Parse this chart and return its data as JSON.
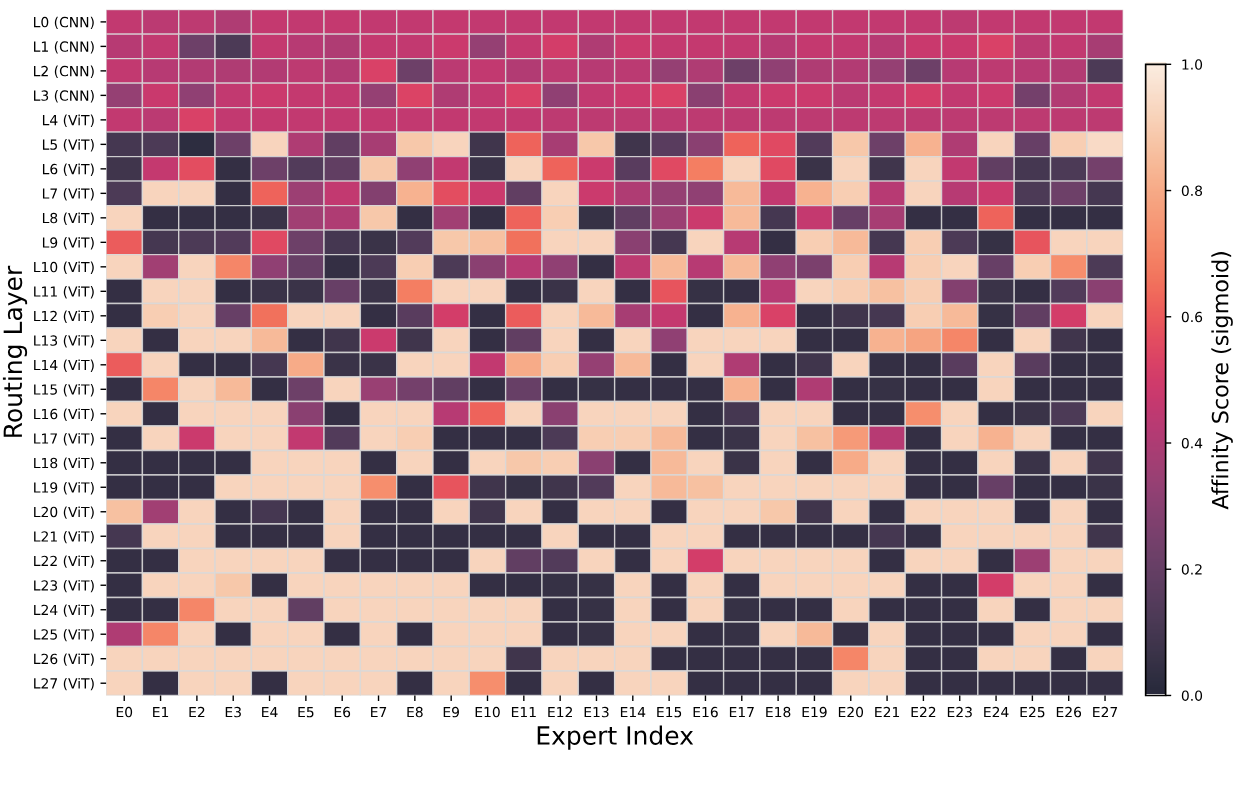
{
  "chart_data": {
    "type": "heatmap",
    "xlabel": "Expert Index",
    "ylabel": "Routing Layer",
    "clabel": "Affinity Score (sigmoid)",
    "categories": [
      "E0",
      "E1",
      "E2",
      "E3",
      "E4",
      "E5",
      "E6",
      "E7",
      "E8",
      "E9",
      "E10",
      "E11",
      "E12",
      "E13",
      "E14",
      "E15",
      "E16",
      "E17",
      "E18",
      "E19",
      "E20",
      "E21",
      "E22",
      "E23",
      "E24",
      "E25",
      "E26",
      "E27"
    ],
    "y_categories": [
      "L0 (CNN)",
      "L1 (CNN)",
      "L2 (CNN)",
      "L3 (CNN)",
      "L4 (ViT)",
      "L5 (ViT)",
      "L6 (ViT)",
      "L7 (ViT)",
      "L8 (ViT)",
      "L9 (ViT)",
      "L10 (ViT)",
      "L11 (ViT)",
      "L12 (ViT)",
      "L13 (ViT)",
      "L14 (ViT)",
      "L15 (ViT)",
      "L16 (ViT)",
      "L17 (ViT)",
      "L18 (ViT)",
      "L19 (ViT)",
      "L20 (ViT)",
      "L21 (ViT)",
      "L22 (ViT)",
      "L23 (ViT)",
      "L24 (ViT)",
      "L25 (ViT)",
      "L26 (ViT)",
      "L27 (ViT)"
    ],
    "cells": [
      [
        0.45,
        0.43,
        0.44,
        0.4,
        0.46,
        0.45,
        0.46,
        0.45,
        0.45,
        0.46,
        0.45,
        0.45,
        0.45,
        0.45,
        0.45,
        0.45,
        0.45,
        0.45,
        0.45,
        0.45,
        0.45,
        0.45,
        0.45,
        0.44,
        0.45,
        0.45,
        0.45,
        0.45
      ],
      [
        0.42,
        0.45,
        0.22,
        0.12,
        0.46,
        0.42,
        0.4,
        0.46,
        0.45,
        0.48,
        0.33,
        0.46,
        0.5,
        0.4,
        0.48,
        0.46,
        0.46,
        0.45,
        0.42,
        0.46,
        0.45,
        0.42,
        0.47,
        0.47,
        0.52,
        0.43,
        0.45,
        0.38
      ],
      [
        0.45,
        0.42,
        0.41,
        0.4,
        0.41,
        0.44,
        0.41,
        0.52,
        0.22,
        0.43,
        0.45,
        0.41,
        0.44,
        0.42,
        0.43,
        0.33,
        0.4,
        0.22,
        0.32,
        0.4,
        0.41,
        0.33,
        0.22,
        0.42,
        0.44,
        0.42,
        0.41,
        0.12
      ],
      [
        0.33,
        0.47,
        0.32,
        0.45,
        0.48,
        0.46,
        0.45,
        0.33,
        0.53,
        0.4,
        0.45,
        0.52,
        0.32,
        0.45,
        0.48,
        0.52,
        0.3,
        0.45,
        0.48,
        0.48,
        0.43,
        0.46,
        0.5,
        0.45,
        0.48,
        0.24,
        0.41,
        0.45
      ],
      [
        0.45,
        0.43,
        0.52,
        0.45,
        0.46,
        0.45,
        0.45,
        0.45,
        0.45,
        0.45,
        0.45,
        0.45,
        0.44,
        0.44,
        0.44,
        0.44,
        0.44,
        0.44,
        0.44,
        0.44,
        0.44,
        0.44,
        0.44,
        0.44,
        0.44,
        0.44,
        0.44,
        0.44
      ],
      [
        0.1,
        0.12,
        0.02,
        0.22,
        0.92,
        0.4,
        0.18,
        0.38,
        0.88,
        0.92,
        0.08,
        0.62,
        0.38,
        0.88,
        0.08,
        0.16,
        0.3,
        0.62,
        0.55,
        0.14,
        0.88,
        0.22,
        0.82,
        0.4,
        0.92,
        0.2,
        0.9,
        0.94
      ],
      [
        0.08,
        0.46,
        0.56,
        0.04,
        0.22,
        0.14,
        0.18,
        0.88,
        0.32,
        0.45,
        0.06,
        0.92,
        0.62,
        0.48,
        0.16,
        0.55,
        0.68,
        0.92,
        0.55,
        0.06,
        0.92,
        0.08,
        0.92,
        0.45,
        0.18,
        0.1,
        0.12,
        0.24
      ],
      [
        0.12,
        0.92,
        0.92,
        0.04,
        0.62,
        0.35,
        0.45,
        0.28,
        0.82,
        0.56,
        0.48,
        0.18,
        0.92,
        0.48,
        0.4,
        0.33,
        0.32,
        0.84,
        0.45,
        0.82,
        0.9,
        0.42,
        0.92,
        0.42,
        0.48,
        0.12,
        0.22,
        0.1
      ],
      [
        0.92,
        0.04,
        0.04,
        0.04,
        0.06,
        0.36,
        0.4,
        0.88,
        0.04,
        0.36,
        0.04,
        0.62,
        0.9,
        0.05,
        0.18,
        0.35,
        0.48,
        0.84,
        0.1,
        0.46,
        0.2,
        0.38,
        0.04,
        0.04,
        0.62,
        0.04,
        0.04,
        0.04
      ],
      [
        0.6,
        0.1,
        0.12,
        0.14,
        0.55,
        0.22,
        0.1,
        0.06,
        0.14,
        0.88,
        0.86,
        0.65,
        0.92,
        0.92,
        0.3,
        0.1,
        0.92,
        0.42,
        0.04,
        0.9,
        0.84,
        0.1,
        0.9,
        0.12,
        0.05,
        0.58,
        0.92,
        0.92
      ],
      [
        0.92,
        0.36,
        0.92,
        0.7,
        0.32,
        0.2,
        0.04,
        0.12,
        0.9,
        0.12,
        0.3,
        0.42,
        0.32,
        0.04,
        0.44,
        0.84,
        0.42,
        0.84,
        0.32,
        0.26,
        0.9,
        0.42,
        0.9,
        0.92,
        0.2,
        0.9,
        0.72,
        0.12
      ],
      [
        0.04,
        0.92,
        0.92,
        0.04,
        0.06,
        0.06,
        0.2,
        0.06,
        0.68,
        0.92,
        0.92,
        0.04,
        0.06,
        0.92,
        0.04,
        0.58,
        0.05,
        0.04,
        0.42,
        0.92,
        0.9,
        0.86,
        0.9,
        0.28,
        0.06,
        0.04,
        0.14,
        0.3
      ],
      [
        0.04,
        0.9,
        0.92,
        0.2,
        0.65,
        0.92,
        0.92,
        0.04,
        0.16,
        0.5,
        0.04,
        0.6,
        0.92,
        0.84,
        0.38,
        0.46,
        0.04,
        0.82,
        0.52,
        0.04,
        0.08,
        0.1,
        0.9,
        0.84,
        0.05,
        0.18,
        0.5,
        0.92
      ],
      [
        0.92,
        0.04,
        0.92,
        0.92,
        0.84,
        0.04,
        0.08,
        0.48,
        0.08,
        0.92,
        0.04,
        0.18,
        0.92,
        0.04,
        0.92,
        0.32,
        0.92,
        0.92,
        0.92,
        0.04,
        0.04,
        0.82,
        0.78,
        0.7,
        0.04,
        0.92,
        0.08,
        0.04
      ],
      [
        0.6,
        0.92,
        0.04,
        0.04,
        0.1,
        0.8,
        0.06,
        0.06,
        0.92,
        0.92,
        0.45,
        0.8,
        0.9,
        0.33,
        0.84,
        0.04,
        0.92,
        0.4,
        0.04,
        0.08,
        0.92,
        0.04,
        0.04,
        0.16,
        0.92,
        0.16,
        0.04,
        0.04
      ],
      [
        0.04,
        0.7,
        0.92,
        0.84,
        0.04,
        0.22,
        0.92,
        0.34,
        0.24,
        0.18,
        0.04,
        0.2,
        0.04,
        0.05,
        0.04,
        0.04,
        0.04,
        0.82,
        0.04,
        0.4,
        0.04,
        0.05,
        0.04,
        0.04,
        0.92,
        0.04,
        0.04,
        0.04
      ],
      [
        0.92,
        0.04,
        0.92,
        0.92,
        0.92,
        0.3,
        0.04,
        0.92,
        0.92,
        0.42,
        0.62,
        0.92,
        0.3,
        0.92,
        0.92,
        0.92,
        0.04,
        0.1,
        0.92,
        0.92,
        0.04,
        0.04,
        0.72,
        0.92,
        0.04,
        0.06,
        0.12,
        0.92
      ],
      [
        0.04,
        0.92,
        0.48,
        0.92,
        0.92,
        0.45,
        0.14,
        0.92,
        0.9,
        0.04,
        0.04,
        0.04,
        0.12,
        0.9,
        0.9,
        0.84,
        0.04,
        0.06,
        0.92,
        0.86,
        0.75,
        0.42,
        0.04,
        0.92,
        0.82,
        0.92,
        0.04,
        0.04
      ],
      [
        0.04,
        0.04,
        0.04,
        0.04,
        0.92,
        0.92,
        0.92,
        0.04,
        0.92,
        0.04,
        0.92,
        0.88,
        0.9,
        0.3,
        0.04,
        0.84,
        0.92,
        0.06,
        0.92,
        0.04,
        0.8,
        0.92,
        0.04,
        0.04,
        0.92,
        0.06,
        0.92,
        0.08
      ],
      [
        0.04,
        0.04,
        0.04,
        0.92,
        0.92,
        0.92,
        0.92,
        0.72,
        0.04,
        0.58,
        0.08,
        0.05,
        0.08,
        0.14,
        0.92,
        0.84,
        0.86,
        0.92,
        0.92,
        0.92,
        0.92,
        0.92,
        0.04,
        0.04,
        0.2,
        0.04,
        0.04,
        0.06
      ],
      [
        0.86,
        0.36,
        0.92,
        0.04,
        0.1,
        0.04,
        0.92,
        0.04,
        0.04,
        0.92,
        0.08,
        0.92,
        0.04,
        0.92,
        0.92,
        0.04,
        0.92,
        0.92,
        0.88,
        0.08,
        0.92,
        0.04,
        0.92,
        0.92,
        0.92,
        0.04,
        0.92,
        0.04
      ],
      [
        0.1,
        0.92,
        0.92,
        0.04,
        0.04,
        0.04,
        0.92,
        0.04,
        0.04,
        0.04,
        0.04,
        0.04,
        0.92,
        0.04,
        0.04,
        0.92,
        0.92,
        0.04,
        0.04,
        0.04,
        0.04,
        0.1,
        0.04,
        0.92,
        0.92,
        0.92,
        0.92,
        0.08
      ],
      [
        0.04,
        0.04,
        0.92,
        0.92,
        0.92,
        0.92,
        0.04,
        0.04,
        0.04,
        0.04,
        0.92,
        0.18,
        0.14,
        0.92,
        0.04,
        0.92,
        0.5,
        0.92,
        0.92,
        0.92,
        0.92,
        0.04,
        0.92,
        0.92,
        0.04,
        0.35,
        0.92,
        0.92
      ],
      [
        0.04,
        0.92,
        0.92,
        0.88,
        0.04,
        0.92,
        0.92,
        0.92,
        0.92,
        0.92,
        0.04,
        0.04,
        0.05,
        0.05,
        0.92,
        0.04,
        0.92,
        0.04,
        0.92,
        0.92,
        0.92,
        0.92,
        0.04,
        0.04,
        0.5,
        0.92,
        0.92,
        0.04
      ],
      [
        0.04,
        0.04,
        0.7,
        0.92,
        0.92,
        0.18,
        0.92,
        0.92,
        0.92,
        0.92,
        0.92,
        0.92,
        0.04,
        0.05,
        0.92,
        0.04,
        0.92,
        0.05,
        0.04,
        0.04,
        0.92,
        0.04,
        0.04,
        0.04,
        0.92,
        0.04,
        0.92,
        0.92
      ],
      [
        0.4,
        0.7,
        0.92,
        0.04,
        0.92,
        0.92,
        0.04,
        0.92,
        0.04,
        0.92,
        0.92,
        0.92,
        0.04,
        0.05,
        0.92,
        0.92,
        0.04,
        0.05,
        0.92,
        0.84,
        0.04,
        0.92,
        0.04,
        0.04,
        0.04,
        0.92,
        0.92,
        0.04
      ],
      [
        0.92,
        0.92,
        0.92,
        0.92,
        0.92,
        0.92,
        0.92,
        0.92,
        0.92,
        0.92,
        0.92,
        0.08,
        0.92,
        0.92,
        0.92,
        0.04,
        0.04,
        0.04,
        0.04,
        0.04,
        0.7,
        0.92,
        0.04,
        0.04,
        0.92,
        0.92,
        0.04,
        0.92
      ],
      [
        0.92,
        0.04,
        0.92,
        0.92,
        0.04,
        0.92,
        0.92,
        0.92,
        0.04,
        0.92,
        0.72,
        0.04,
        0.92,
        0.04,
        0.92,
        0.92,
        0.04,
        0.04,
        0.04,
        0.04,
        0.92,
        0.92,
        0.04,
        0.04,
        0.04,
        0.04,
        0.04,
        0.04
      ]
    ],
    "clim": [
      0,
      1
    ],
    "cticks": [
      {
        "value": 0,
        "label": "0.0"
      },
      {
        "value": 0.2,
        "label": "0.2"
      },
      {
        "value": 0.4,
        "label": "0.4"
      },
      {
        "value": 0.6,
        "label": "0.6"
      },
      {
        "value": 0.8,
        "label": "0.8"
      },
      {
        "value": 1,
        "label": "1.0"
      }
    ]
  }
}
